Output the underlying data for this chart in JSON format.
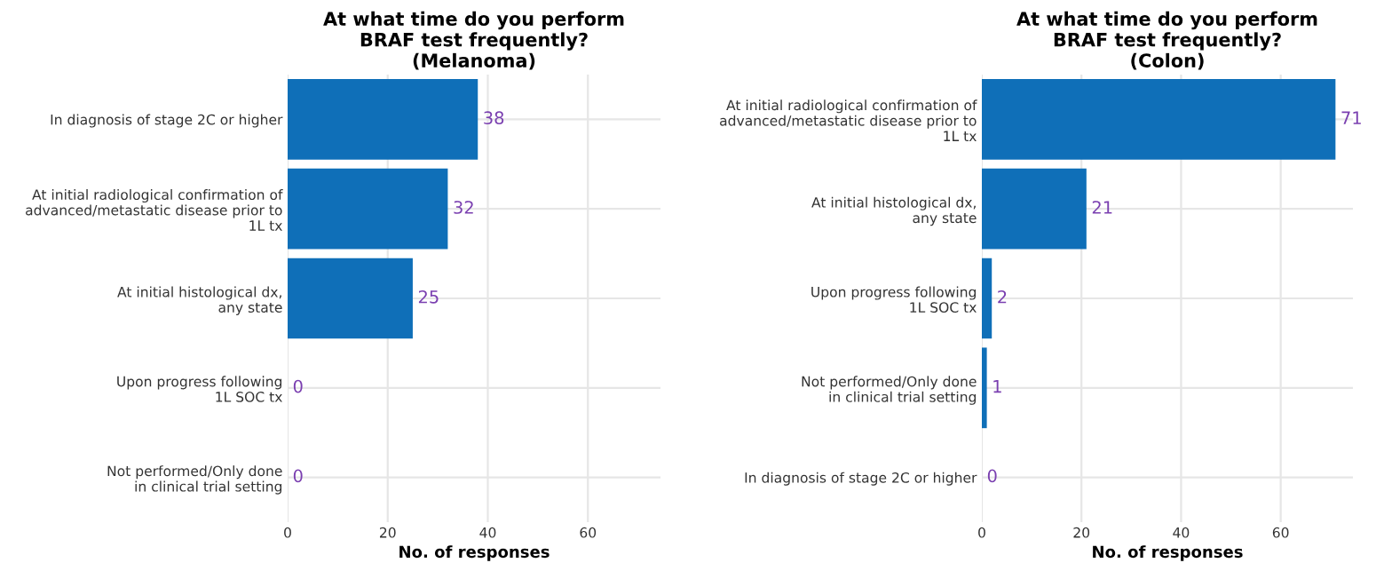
{
  "chart_data": [
    {
      "type": "bar",
      "orientation": "horizontal",
      "title": "At what time do you perform\nBRAF test frequently?\n(Melanoma)",
      "xlabel": "No. of responses",
      "categories": [
        "In diagnosis of stage 2C or higher",
        "At initial radiological confirmation of\nadvanced/metastatic disease prior to\n1L tx",
        "At initial histological dx,\nany state",
        "Upon progress following\n1L SOC tx",
        "Not performed/Only done\nin clinical trial setting"
      ],
      "values": [
        38,
        32,
        25,
        0,
        0
      ],
      "color": "#0f6fb8",
      "data_labels": true,
      "xlim": [
        0,
        74.5
      ],
      "xticks": [
        0,
        20,
        40,
        60
      ],
      "grid": true
    },
    {
      "type": "bar",
      "orientation": "horizontal",
      "title": "At what time do you perform\nBRAF test frequently?\n(Colon)",
      "xlabel": "No. of responses",
      "categories": [
        "At initial radiological confirmation of\nadvanced/metastatic disease prior to\n1L tx",
        "At initial histological dx,\nany state",
        "Upon progress following\n1L SOC tx",
        "Not performed/Only done\nin clinical trial setting",
        "In diagnosis of stage 2C or higher"
      ],
      "values": [
        71,
        21,
        2,
        1,
        0
      ],
      "color": "#0f6fb8",
      "data_labels": true,
      "xlim": [
        0,
        74.5
      ],
      "xticks": [
        0,
        20,
        40,
        60
      ],
      "grid": true
    }
  ]
}
